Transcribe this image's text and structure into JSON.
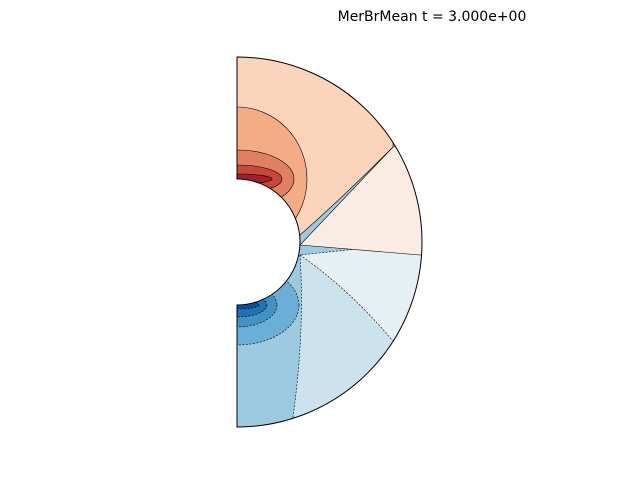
{
  "chart_data": {
    "type": "contour",
    "title": "MerBrMean t = 3.000e+00"
  }
}
